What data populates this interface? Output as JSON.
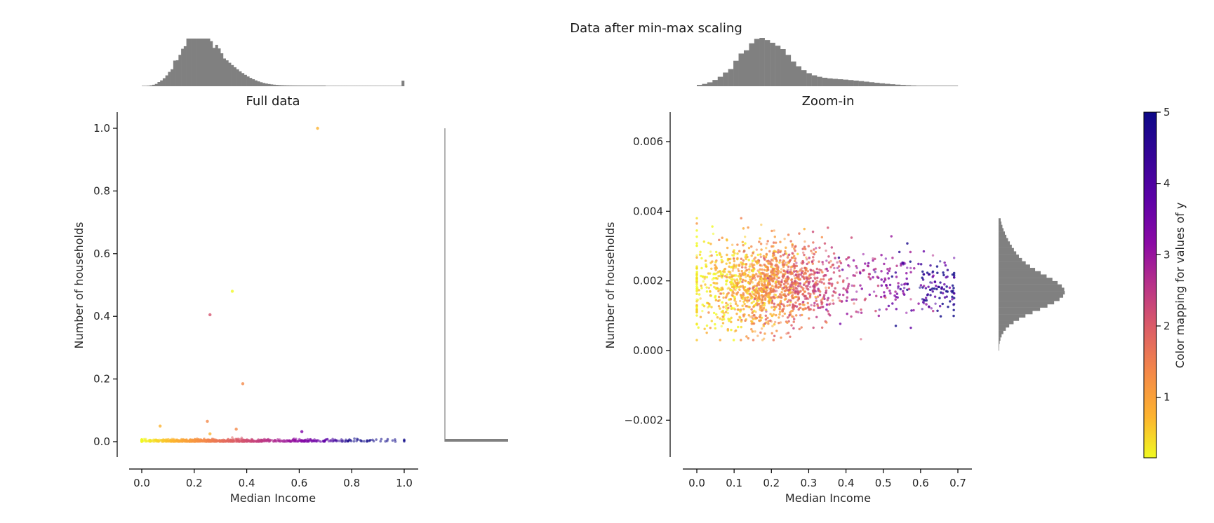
{
  "figure": {
    "suptitle": "Data after min-max scaling",
    "colors": {
      "hist": "#808080",
      "axis": "#000000",
      "text": "#262626"
    },
    "colormap": "plasma_r"
  },
  "chart_data": [
    {
      "type": "scatter",
      "title": "Full data",
      "xlabel": "Median Income",
      "ylabel": "Number of households",
      "xlim": [
        -0.05,
        1.05
      ],
      "ylim": [
        -0.05,
        1.05
      ],
      "xticks": [
        "0.0",
        "0.2",
        "0.4",
        "0.6",
        "0.8",
        "1.0"
      ],
      "yticks": [
        "0.0",
        "0.2",
        "0.4",
        "0.6",
        "0.8",
        "1.0"
      ],
      "outliers": [
        {
          "x": 0.67,
          "y": 1.0,
          "color": "#fdb32f"
        },
        {
          "x": 0.345,
          "y": 0.48,
          "color": "#f0f921"
        },
        {
          "x": 0.26,
          "y": 0.405,
          "color": "#d5546e"
        },
        {
          "x": 0.385,
          "y": 0.185,
          "color": "#f48849"
        },
        {
          "x": 0.07,
          "y": 0.05,
          "color": "#fdb32f"
        },
        {
          "x": 0.25,
          "y": 0.065,
          "color": "#f48849"
        },
        {
          "x": 0.36,
          "y": 0.04,
          "color": "#f48849"
        },
        {
          "x": 0.61,
          "y": 0.032,
          "color": "#7e03a8"
        },
        {
          "x": 0.26,
          "y": 0.025,
          "color": "#fdb32f"
        }
      ],
      "marginal_x": "Median Income distribution",
      "marginal_y": "Number of households distribution"
    },
    {
      "type": "scatter",
      "title": "Zoom-in",
      "xlabel": "Median Income",
      "ylabel": "Number of households",
      "xlim": [
        -0.035,
        0.735
      ],
      "ylim": [
        -0.0031,
        0.0069
      ],
      "xticks": [
        "0.0",
        "0.1",
        "0.2",
        "0.3",
        "0.4",
        "0.5",
        "0.6",
        "0.7"
      ],
      "yticks": [
        "−0.002",
        "0.000",
        "0.002",
        "0.004",
        "0.006"
      ]
    },
    {
      "type": "colorbar",
      "label": "Color mapping for values of y",
      "range": [
        0.15,
        5.0
      ],
      "ticks": [
        "1",
        "2",
        "3",
        "4",
        "5"
      ]
    }
  ]
}
